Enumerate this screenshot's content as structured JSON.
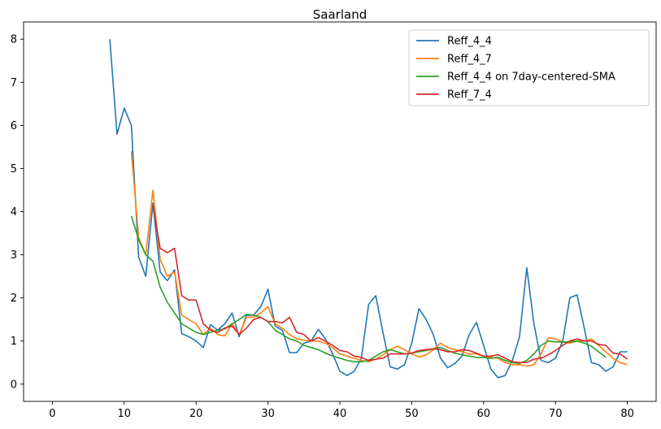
{
  "chart_data": {
    "type": "line",
    "title": "Saarland",
    "xlabel": "",
    "ylabel": "",
    "xlim": [
      -4,
      84
    ],
    "ylim": [
      -0.4,
      8.4
    ],
    "xticks": [
      0,
      10,
      20,
      30,
      40,
      50,
      60,
      70,
      80
    ],
    "yticks": [
      0,
      1,
      2,
      3,
      4,
      5,
      6,
      7,
      8
    ],
    "grid": false,
    "legend_position": "top-right",
    "series": [
      {
        "name": "Reff_4_4",
        "color": "#1f77b4",
        "x": [
          8,
          9,
          10,
          11,
          12,
          13,
          14,
          15,
          16,
          17,
          18,
          19,
          20,
          21,
          22,
          23,
          24,
          25,
          26,
          27,
          28,
          29,
          30,
          31,
          32,
          33,
          34,
          35,
          36,
          37,
          38,
          39,
          40,
          41,
          42,
          43,
          44,
          45,
          46,
          47,
          48,
          49,
          50,
          51,
          52,
          53,
          54,
          55,
          56,
          57,
          58,
          59,
          60,
          61,
          62,
          63,
          64,
          65,
          66,
          67,
          68,
          69,
          70,
          71,
          72,
          73,
          74,
          75,
          76,
          77,
          78,
          79,
          80
        ],
        "y": [
          8.0,
          5.8,
          6.4,
          6.0,
          2.95,
          2.5,
          4.2,
          2.6,
          2.4,
          2.65,
          1.17,
          1.1,
          1.0,
          0.85,
          1.38,
          1.25,
          1.4,
          1.65,
          1.1,
          1.6,
          1.6,
          1.8,
          2.2,
          1.35,
          1.25,
          0.73,
          0.73,
          0.95,
          1.0,
          1.27,
          1.05,
          0.7,
          0.3,
          0.2,
          0.3,
          0.6,
          1.85,
          2.05,
          1.2,
          0.4,
          0.35,
          0.45,
          0.95,
          1.75,
          1.5,
          1.15,
          0.6,
          0.38,
          0.48,
          0.65,
          1.15,
          1.43,
          0.9,
          0.35,
          0.15,
          0.2,
          0.55,
          1.1,
          2.7,
          1.4,
          0.55,
          0.5,
          0.6,
          1.0,
          2.0,
          2.07,
          1.3,
          0.5,
          0.45,
          0.3,
          0.4,
          0.75,
          0.75
        ]
      },
      {
        "name": "Reff_4_7",
        "color": "#ff7f0e",
        "x": [
          11,
          12,
          13,
          14,
          15,
          16,
          17,
          18,
          19,
          20,
          21,
          22,
          23,
          24,
          25,
          26,
          27,
          28,
          29,
          30,
          31,
          32,
          33,
          34,
          35,
          36,
          37,
          38,
          39,
          40,
          41,
          42,
          43,
          44,
          45,
          46,
          47,
          48,
          49,
          50,
          51,
          52,
          53,
          54,
          55,
          56,
          57,
          58,
          59,
          60,
          61,
          62,
          63,
          64,
          65,
          66,
          67,
          68,
          69,
          70,
          71,
          72,
          73,
          74,
          75,
          76,
          77,
          78,
          79,
          80
        ],
        "y": [
          5.4,
          3.4,
          3.0,
          4.5,
          2.9,
          2.5,
          2.6,
          1.6,
          1.5,
          1.4,
          1.15,
          1.3,
          1.15,
          1.12,
          1.4,
          1.15,
          1.55,
          1.55,
          1.65,
          1.8,
          1.4,
          1.3,
          1.15,
          1.05,
          1.02,
          1.0,
          1.0,
          0.95,
          0.85,
          0.7,
          0.65,
          0.6,
          0.55,
          0.52,
          0.58,
          0.68,
          0.8,
          0.88,
          0.8,
          0.7,
          0.63,
          0.68,
          0.8,
          0.95,
          0.85,
          0.8,
          0.75,
          0.7,
          0.7,
          0.65,
          0.62,
          0.6,
          0.5,
          0.45,
          0.45,
          0.42,
          0.45,
          0.7,
          1.08,
          1.05,
          0.98,
          0.95,
          1.0,
          1.0,
          1.05,
          0.9,
          0.75,
          0.6,
          0.5,
          0.45
        ]
      },
      {
        "name": "Reff_4_4 on 7day-centered-SMA",
        "color": "#2ca02c",
        "x": [
          11,
          12,
          13,
          14,
          15,
          16,
          17,
          18,
          19,
          20,
          21,
          22,
          23,
          24,
          25,
          26,
          27,
          28,
          29,
          30,
          31,
          32,
          33,
          34,
          35,
          36,
          37,
          38,
          39,
          40,
          41,
          42,
          43,
          44,
          45,
          46,
          47,
          48,
          49,
          50,
          51,
          52,
          53,
          54,
          55,
          56,
          57,
          58,
          59,
          60,
          61,
          62,
          63,
          64,
          65,
          66,
          67,
          68,
          69,
          70,
          71,
          72,
          73,
          74,
          75,
          76,
          77
        ],
        "y": [
          3.9,
          3.35,
          3.0,
          2.85,
          2.25,
          1.9,
          1.65,
          1.4,
          1.3,
          1.2,
          1.15,
          1.2,
          1.25,
          1.28,
          1.4,
          1.5,
          1.62,
          1.6,
          1.55,
          1.45,
          1.25,
          1.15,
          1.05,
          1.0,
          0.9,
          0.85,
          0.8,
          0.72,
          0.65,
          0.6,
          0.55,
          0.52,
          0.52,
          0.55,
          0.65,
          0.75,
          0.8,
          0.75,
          0.7,
          0.72,
          0.75,
          0.78,
          0.82,
          0.85,
          0.78,
          0.72,
          0.68,
          0.65,
          0.62,
          0.62,
          0.6,
          0.62,
          0.55,
          0.5,
          0.48,
          0.55,
          0.7,
          0.9,
          1.0,
          0.98,
          0.98,
          0.98,
          1.0,
          0.95,
          0.88,
          0.75,
          0.62
        ]
      },
      {
        "name": "Reff_7_4",
        "color": "#d62728",
        "x": [
          14,
          15,
          16,
          17,
          18,
          19,
          20,
          21,
          22,
          23,
          24,
          25,
          26,
          27,
          28,
          29,
          30,
          31,
          32,
          33,
          34,
          35,
          36,
          37,
          38,
          39,
          40,
          41,
          42,
          43,
          44,
          45,
          46,
          47,
          48,
          49,
          50,
          51,
          52,
          53,
          54,
          55,
          56,
          57,
          58,
          59,
          60,
          61,
          62,
          63,
          64,
          65,
          66,
          67,
          68,
          69,
          70,
          71,
          72,
          73,
          74,
          75,
          76,
          77,
          78,
          79,
          80
        ],
        "y": [
          4.15,
          3.15,
          3.05,
          3.15,
          2.05,
          1.95,
          1.95,
          1.4,
          1.25,
          1.2,
          1.3,
          1.35,
          1.15,
          1.3,
          1.5,
          1.55,
          1.45,
          1.45,
          1.42,
          1.55,
          1.2,
          1.15,
          1.0,
          1.08,
          1.0,
          0.9,
          0.78,
          0.75,
          0.65,
          0.62,
          0.55,
          0.58,
          0.6,
          0.7,
          0.7,
          0.7,
          0.72,
          0.78,
          0.8,
          0.82,
          0.8,
          0.75,
          0.75,
          0.8,
          0.78,
          0.72,
          0.65,
          0.65,
          0.68,
          0.6,
          0.52,
          0.5,
          0.5,
          0.58,
          0.6,
          0.68,
          0.78,
          0.9,
          1.0,
          1.05,
          1.0,
          1.0,
          0.92,
          0.9,
          0.72,
          0.7,
          0.58
        ]
      }
    ]
  }
}
